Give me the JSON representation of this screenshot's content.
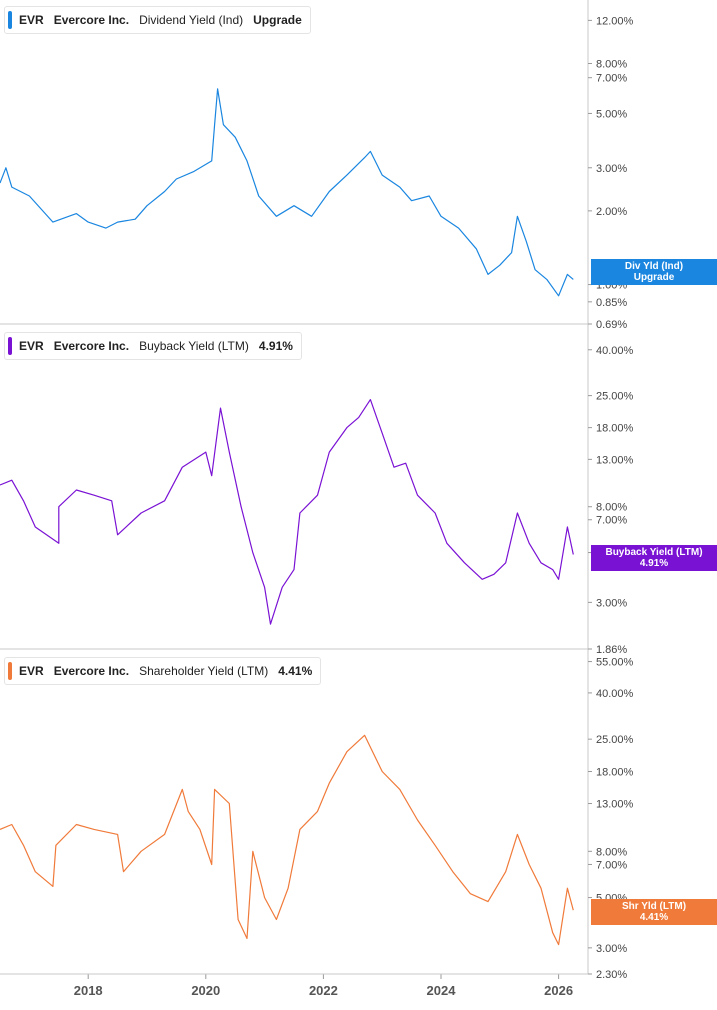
{
  "chart_data": [
    {
      "type": "line",
      "ticker": "EVR",
      "company": "Evercore Inc.",
      "metric": "Dividend Yield (Ind)",
      "legend_value": "Upgrade",
      "tag_line1": "Div Yld (Ind)",
      "tag_line2": "Upgrade",
      "color": "#1a86e0",
      "scale": "log",
      "ylim": [
        0.69,
        14.0
      ],
      "yticks": [
        "12.00%",
        "8.00%",
        "7.00%",
        "5.00%",
        "3.00%",
        "2.00%",
        "1.00%",
        "0.85%",
        "0.69%"
      ],
      "ytick_values": [
        12,
        8,
        7,
        5,
        3,
        2,
        1,
        0.85,
        0.69
      ],
      "points": [
        [
          2016.5,
          2.6
        ],
        [
          2016.6,
          3.0
        ],
        [
          2016.7,
          2.5
        ],
        [
          2017.0,
          2.3
        ],
        [
          2017.4,
          1.8
        ],
        [
          2017.8,
          1.95
        ],
        [
          2018.0,
          1.8
        ],
        [
          2018.3,
          1.7
        ],
        [
          2018.5,
          1.8
        ],
        [
          2018.8,
          1.85
        ],
        [
          2019.0,
          2.1
        ],
        [
          2019.3,
          2.4
        ],
        [
          2019.5,
          2.7
        ],
        [
          2019.8,
          2.9
        ],
        [
          2020.1,
          3.2
        ],
        [
          2020.15,
          4.5
        ],
        [
          2020.2,
          6.3
        ],
        [
          2020.3,
          4.5
        ],
        [
          2020.5,
          4.0
        ],
        [
          2020.7,
          3.2
        ],
        [
          2020.9,
          2.3
        ],
        [
          2021.2,
          1.9
        ],
        [
          2021.5,
          2.1
        ],
        [
          2021.8,
          1.9
        ],
        [
          2022.1,
          2.4
        ],
        [
          2022.4,
          2.8
        ],
        [
          2022.7,
          3.3
        ],
        [
          2022.8,
          3.5
        ],
        [
          2023.0,
          2.8
        ],
        [
          2023.3,
          2.5
        ],
        [
          2023.5,
          2.2
        ],
        [
          2023.8,
          2.3
        ],
        [
          2024.0,
          1.9
        ],
        [
          2024.3,
          1.7
        ],
        [
          2024.6,
          1.4
        ],
        [
          2024.8,
          1.1
        ],
        [
          2025.0,
          1.2
        ],
        [
          2025.2,
          1.35
        ],
        [
          2025.3,
          1.9
        ],
        [
          2025.45,
          1.5
        ],
        [
          2025.6,
          1.15
        ],
        [
          2025.8,
          1.05
        ],
        [
          2026.0,
          0.9
        ],
        [
          2026.15,
          1.1
        ],
        [
          2026.25,
          1.05
        ]
      ]
    },
    {
      "type": "line",
      "ticker": "EVR",
      "company": "Evercore Inc.",
      "metric": "Buyback Yield (LTM)",
      "legend_value": "4.91%",
      "tag_line1": "Buyback Yield (LTM)",
      "tag_line2": "4.91%",
      "color": "#7a12d4",
      "scale": "log",
      "ylim": [
        1.86,
        50.0
      ],
      "yticks": [
        "40.00%",
        "25.00%",
        "18.00%",
        "13.00%",
        "8.00%",
        "7.00%",
        "5.00%",
        "3.00%",
        "1.86%"
      ],
      "ytick_values": [
        40,
        25,
        18,
        13,
        8,
        7,
        5,
        3,
        1.86
      ],
      "points": [
        [
          2016.5,
          10
        ],
        [
          2016.7,
          10.5
        ],
        [
          2016.9,
          8.5
        ],
        [
          2017.1,
          6.5
        ],
        [
          2017.5,
          5.5
        ],
        [
          2017.5,
          8.0
        ],
        [
          2017.8,
          9.5
        ],
        [
          2018.1,
          9.0
        ],
        [
          2018.4,
          8.5
        ],
        [
          2018.5,
          6.0
        ],
        [
          2018.9,
          7.5
        ],
        [
          2019.3,
          8.5
        ],
        [
          2019.6,
          12
        ],
        [
          2020.0,
          14
        ],
        [
          2020.1,
          11
        ],
        [
          2020.25,
          22
        ],
        [
          2020.4,
          14
        ],
        [
          2020.6,
          8.0
        ],
        [
          2020.8,
          5.0
        ],
        [
          2021.0,
          3.5
        ],
        [
          2021.1,
          2.4
        ],
        [
          2021.3,
          3.5
        ],
        [
          2021.5,
          4.2
        ],
        [
          2021.6,
          7.5
        ],
        [
          2021.9,
          9.0
        ],
        [
          2022.1,
          14
        ],
        [
          2022.4,
          18
        ],
        [
          2022.6,
          20
        ],
        [
          2022.8,
          24
        ],
        [
          2023.0,
          17
        ],
        [
          2023.2,
          12
        ],
        [
          2023.4,
          12.5
        ],
        [
          2023.6,
          9.0
        ],
        [
          2023.9,
          7.5
        ],
        [
          2024.1,
          5.5
        ],
        [
          2024.4,
          4.5
        ],
        [
          2024.7,
          3.8
        ],
        [
          2024.9,
          4.0
        ],
        [
          2025.1,
          4.5
        ],
        [
          2025.3,
          7.5
        ],
        [
          2025.5,
          5.5
        ],
        [
          2025.7,
          4.5
        ],
        [
          2025.9,
          4.2
        ],
        [
          2026.0,
          3.8
        ],
        [
          2026.15,
          6.5
        ],
        [
          2026.25,
          4.9
        ]
      ]
    },
    {
      "type": "line",
      "ticker": "EVR",
      "company": "Evercore Inc.",
      "metric": "Shareholder Yield (LTM)",
      "legend_value": "4.41%",
      "tag_line1": "Shr Yld (LTM)",
      "tag_line2": "4.41%",
      "color": "#f07a3a",
      "scale": "log",
      "ylim": [
        2.3,
        60.0
      ],
      "yticks": [
        "55.00%",
        "40.00%",
        "25.00%",
        "18.00%",
        "13.00%",
        "8.00%",
        "7.00%",
        "5.00%",
        "3.00%",
        "2.30%"
      ],
      "ytick_values": [
        55,
        40,
        25,
        18,
        13,
        8,
        7,
        5,
        3,
        2.3
      ],
      "points": [
        [
          2016.5,
          10
        ],
        [
          2016.7,
          10.5
        ],
        [
          2016.9,
          8.5
        ],
        [
          2017.1,
          6.5
        ],
        [
          2017.4,
          5.6
        ],
        [
          2017.45,
          8.5
        ],
        [
          2017.8,
          10.5
        ],
        [
          2018.1,
          10
        ],
        [
          2018.5,
          9.5
        ],
        [
          2018.6,
          6.5
        ],
        [
          2018.9,
          8.0
        ],
        [
          2019.3,
          9.5
        ],
        [
          2019.6,
          15
        ],
        [
          2019.7,
          12
        ],
        [
          2019.9,
          10
        ],
        [
          2020.1,
          7
        ],
        [
          2020.15,
          15
        ],
        [
          2020.4,
          13
        ],
        [
          2020.55,
          4
        ],
        [
          2020.7,
          3.3
        ],
        [
          2020.8,
          8
        ],
        [
          2021.0,
          5
        ],
        [
          2021.2,
          4.0
        ],
        [
          2021.4,
          5.5
        ],
        [
          2021.6,
          10
        ],
        [
          2021.9,
          12
        ],
        [
          2022.1,
          16
        ],
        [
          2022.4,
          22
        ],
        [
          2022.7,
          26
        ],
        [
          2023.0,
          18
        ],
        [
          2023.3,
          15
        ],
        [
          2023.6,
          11
        ],
        [
          2023.9,
          8.5
        ],
        [
          2024.2,
          6.5
        ],
        [
          2024.5,
          5.2
        ],
        [
          2024.8,
          4.8
        ],
        [
          2025.1,
          6.5
        ],
        [
          2025.3,
          9.5
        ],
        [
          2025.5,
          7.0
        ],
        [
          2025.7,
          5.5
        ],
        [
          2025.9,
          3.5
        ],
        [
          2026.0,
          3.1
        ],
        [
          2026.15,
          5.5
        ],
        [
          2026.25,
          4.4
        ]
      ]
    }
  ],
  "x_axis": {
    "ticks": [
      "2018",
      "2020",
      "2022",
      "2024",
      "2026"
    ],
    "tick_values": [
      2018,
      2020,
      2022,
      2024,
      2026
    ],
    "range": [
      2016.5,
      2026.5
    ]
  }
}
